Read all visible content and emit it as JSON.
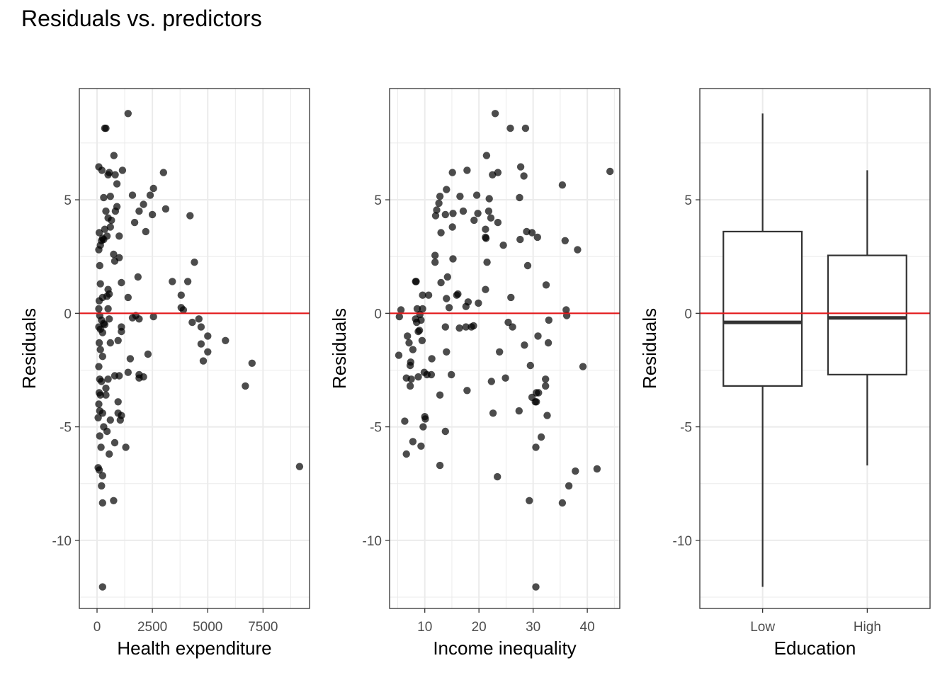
{
  "title": "Residuals vs. predictors",
  "colors": {
    "points": "#000000",
    "reference_line": "#e31a1c",
    "grid": "#ebebeb",
    "panel_border": "#333333",
    "box": "#333333"
  },
  "chart_data": [
    {
      "type": "scatter",
      "xlabel": "Health expenditure",
      "ylabel": "Residuals",
      "xlim": [
        -800,
        9600
      ],
      "ylim": [
        -13,
        9.9
      ],
      "xticks": [
        0,
        2500,
        5000,
        7500
      ],
      "xtick_labels": [
        "0",
        "2500",
        "5000",
        "7500"
      ],
      "yticks": [
        -10,
        -5,
        0,
        5
      ],
      "ytick_labels": [
        "-10",
        "-5",
        "0",
        "5"
      ],
      "reference_line_y": 0,
      "grid": true,
      "points": [
        [
          80,
          6.45
        ],
        [
          220,
          6.3
        ],
        [
          350,
          8.15
        ],
        [
          400,
          8.15
        ],
        [
          1400,
          8.8
        ],
        [
          500,
          6.1
        ],
        [
          550,
          6.2
        ],
        [
          760,
          6.95
        ],
        [
          820,
          6.1
        ],
        [
          1150,
          6.3
        ],
        [
          300,
          5.1
        ],
        [
          600,
          5.15
        ],
        [
          900,
          5.7
        ],
        [
          400,
          4.5
        ],
        [
          500,
          4.2
        ],
        [
          650,
          4.1
        ],
        [
          830,
          4.5
        ],
        [
          900,
          4.7
        ],
        [
          1600,
          5.2
        ],
        [
          1900,
          4.5
        ],
        [
          2100,
          4.8
        ],
        [
          2400,
          5.2
        ],
        [
          2550,
          5.5
        ],
        [
          3000,
          6.2
        ],
        [
          3100,
          4.6
        ],
        [
          2500,
          4.35
        ],
        [
          1700,
          4
        ],
        [
          4200,
          4.3
        ],
        [
          100,
          3.55
        ],
        [
          200,
          3.2
        ],
        [
          250,
          3.3
        ],
        [
          350,
          3.7
        ],
        [
          450,
          3.4
        ],
        [
          600,
          3.8
        ],
        [
          1000,
          3.4
        ],
        [
          2200,
          3.6
        ],
        [
          80,
          2.8
        ],
        [
          150,
          3
        ],
        [
          300,
          3.25
        ],
        [
          120,
          2.1
        ],
        [
          750,
          2.6
        ],
        [
          800,
          2.3
        ],
        [
          1000,
          2.45
        ],
        [
          150,
          1.3
        ],
        [
          500,
          1.05
        ],
        [
          1100,
          1.35
        ],
        [
          1850,
          1.6
        ],
        [
          3400,
          1.4
        ],
        [
          4100,
          1.4
        ],
        [
          4400,
          2.25
        ],
        [
          100,
          0.55
        ],
        [
          250,
          0.7
        ],
        [
          450,
          0.75
        ],
        [
          550,
          0.85
        ],
        [
          500,
          0.2
        ],
        [
          1400,
          0.7
        ],
        [
          3800,
          0.8
        ],
        [
          3800,
          0.25
        ],
        [
          3900,
          0.15
        ],
        [
          80,
          0.2
        ],
        [
          120,
          -0.1
        ],
        [
          200,
          -0.3
        ],
        [
          300,
          -0.45
        ],
        [
          350,
          -0.5
        ],
        [
          80,
          -0.6
        ],
        [
          150,
          -0.7
        ],
        [
          250,
          -0.85
        ],
        [
          550,
          -0.25
        ],
        [
          1100,
          -0.6
        ],
        [
          1100,
          -0.8
        ],
        [
          1600,
          -0.2
        ],
        [
          1750,
          -0.1
        ],
        [
          1900,
          -0.25
        ],
        [
          2550,
          -0.15
        ],
        [
          4600,
          -0.25
        ],
        [
          4300,
          -0.4
        ],
        [
          4700,
          -0.6
        ],
        [
          5000,
          -1
        ],
        [
          4700,
          -1.35
        ],
        [
          5000,
          -1.7
        ],
        [
          5800,
          -1.2
        ],
        [
          4800,
          -2.1
        ],
        [
          7000,
          -2.2
        ],
        [
          6700,
          -3.2
        ],
        [
          100,
          -1.3
        ],
        [
          150,
          -1.6
        ],
        [
          250,
          -1.9
        ],
        [
          600,
          -1.3
        ],
        [
          950,
          -1.2
        ],
        [
          1500,
          -2
        ],
        [
          2300,
          -1.8
        ],
        [
          1400,
          -2.6
        ],
        [
          1900,
          -2.7
        ],
        [
          1900,
          -2.85
        ],
        [
          2100,
          -2.8
        ],
        [
          80,
          -2.35
        ],
        [
          120,
          -2.9
        ],
        [
          200,
          -3
        ],
        [
          400,
          -3.3
        ],
        [
          500,
          -2.9
        ],
        [
          800,
          -2.75
        ],
        [
          1000,
          -2.75
        ],
        [
          100,
          -3.5
        ],
        [
          150,
          -3.6
        ],
        [
          400,
          -3.6
        ],
        [
          950,
          -3.9
        ],
        [
          80,
          -4
        ],
        [
          120,
          -4.3
        ],
        [
          250,
          -4.4
        ],
        [
          950,
          -4.4
        ],
        [
          1100,
          -4.5
        ],
        [
          1050,
          -4.7
        ],
        [
          50,
          -4.6
        ],
        [
          600,
          -4.7
        ],
        [
          300,
          -5
        ],
        [
          450,
          -5.2
        ],
        [
          800,
          -5.7
        ],
        [
          1300,
          -5.9
        ],
        [
          120,
          -5.4
        ],
        [
          180,
          -5.9
        ],
        [
          550,
          -6.2
        ],
        [
          50,
          -6.8
        ],
        [
          100,
          -6.9
        ],
        [
          250,
          -7.15
        ],
        [
          200,
          -7.6
        ],
        [
          750,
          -8.25
        ],
        [
          250,
          -8.35
        ],
        [
          9150,
          -6.75
        ],
        [
          250,
          -12.05
        ]
      ]
    },
    {
      "type": "scatter",
      "xlabel": "Income inequality",
      "ylabel": "Residuals",
      "xlim": [
        3.5,
        46
      ],
      "ylim": [
        -13,
        9.9
      ],
      "xticks": [
        10,
        20,
        30,
        40
      ],
      "xtick_labels": [
        "10",
        "20",
        "30",
        "40"
      ],
      "yticks": [
        -10,
        -5,
        0,
        5
      ],
      "ytick_labels": [
        "-10",
        "-5",
        "0",
        "5"
      ],
      "reference_line_y": 0,
      "grid": true,
      "points": [
        [
          23,
          8.8
        ],
        [
          25.8,
          8.15
        ],
        [
          28.6,
          8.15
        ],
        [
          21.4,
          6.95
        ],
        [
          27.7,
          6.45
        ],
        [
          28.3,
          6.05
        ],
        [
          22.5,
          6.1
        ],
        [
          23.5,
          6.2
        ],
        [
          17.8,
          6.3
        ],
        [
          15.1,
          6.2
        ],
        [
          44.2,
          6.25
        ],
        [
          35.4,
          5.65
        ],
        [
          12.8,
          5.15
        ],
        [
          14,
          5.45
        ],
        [
          16.5,
          5.15
        ],
        [
          19.6,
          5.2
        ],
        [
          21.9,
          5.05
        ],
        [
          27.5,
          5.1
        ],
        [
          12.6,
          4.85
        ],
        [
          12.2,
          4.55
        ],
        [
          13.8,
          4.35
        ],
        [
          15.2,
          4.4
        ],
        [
          17.1,
          4.5
        ],
        [
          19.8,
          4.4
        ],
        [
          21.8,
          4.5
        ],
        [
          22.2,
          4.2
        ],
        [
          23.5,
          4
        ],
        [
          12,
          4.3
        ],
        [
          19.1,
          4.1
        ],
        [
          15.1,
          3.8
        ],
        [
          21.2,
          3.7
        ],
        [
          13,
          3.55
        ],
        [
          21.2,
          3.35
        ],
        [
          21.3,
          3.3
        ],
        [
          24.5,
          3
        ],
        [
          28.8,
          3.6
        ],
        [
          29.8,
          3.55
        ],
        [
          30.8,
          3.35
        ],
        [
          27.6,
          3.25
        ],
        [
          35.9,
          3.2
        ],
        [
          38.2,
          2.8
        ],
        [
          11.9,
          2.55
        ],
        [
          15.2,
          2.4
        ],
        [
          11.9,
          2.25
        ],
        [
          21.5,
          2.25
        ],
        [
          29,
          2.1
        ],
        [
          8.3,
          1.4
        ],
        [
          8.4,
          1.4
        ],
        [
          14.2,
          1.6
        ],
        [
          13,
          1.35
        ],
        [
          21.2,
          1.05
        ],
        [
          32.4,
          1.25
        ],
        [
          9.6,
          0.8
        ],
        [
          10.7,
          0.8
        ],
        [
          15.9,
          0.8
        ],
        [
          16.1,
          0.85
        ],
        [
          18,
          0.5
        ],
        [
          19.9,
          0.45
        ],
        [
          25.9,
          0.7
        ],
        [
          14,
          0.65
        ],
        [
          14.5,
          0.25
        ],
        [
          17.6,
          0.3
        ],
        [
          36.1,
          0.15
        ],
        [
          36.2,
          -0.1
        ],
        [
          5.6,
          0.15
        ],
        [
          8.6,
          0.2
        ],
        [
          9.6,
          0.2
        ],
        [
          9.1,
          -0.05
        ],
        [
          5.3,
          -0.15
        ],
        [
          8.3,
          -0.25
        ],
        [
          9.3,
          -0.3
        ],
        [
          8.5,
          -0.4
        ],
        [
          13.8,
          -0.6
        ],
        [
          16.4,
          -0.65
        ],
        [
          17.6,
          -0.6
        ],
        [
          18.6,
          -0.6
        ],
        [
          19,
          -0.55
        ],
        [
          25.4,
          -0.4
        ],
        [
          26.2,
          -0.6
        ],
        [
          32.9,
          -0.3
        ],
        [
          8.8,
          -0.8
        ],
        [
          9,
          -0.75
        ],
        [
          6.8,
          -1
        ],
        [
          9.5,
          -1.2
        ],
        [
          7.1,
          -1.3
        ],
        [
          7.8,
          -1.6
        ],
        [
          14,
          -1.7
        ],
        [
          23.8,
          -1.7
        ],
        [
          28.4,
          -1.4
        ],
        [
          30.9,
          -1
        ],
        [
          32.8,
          -1.3
        ],
        [
          5.2,
          -1.85
        ],
        [
          7.4,
          -2.15
        ],
        [
          7.3,
          -2.3
        ],
        [
          11.3,
          -2
        ],
        [
          9.9,
          -2.6
        ],
        [
          10.4,
          -2.7
        ],
        [
          11.2,
          -2.7
        ],
        [
          14.9,
          -2.7
        ],
        [
          6.6,
          -2.85
        ],
        [
          7.5,
          -2.9
        ],
        [
          8.8,
          -2.8
        ],
        [
          22.3,
          -3
        ],
        [
          24.9,
          -2.85
        ],
        [
          29.5,
          -2.3
        ],
        [
          32.3,
          -2.9
        ],
        [
          32.3,
          -3.2
        ],
        [
          39.2,
          -2.35
        ],
        [
          7.3,
          -3.2
        ],
        [
          12.8,
          -3.6
        ],
        [
          17.8,
          -3.4
        ],
        [
          29.8,
          -3.7
        ],
        [
          30.4,
          -3.9
        ],
        [
          30.6,
          -3.9
        ],
        [
          30.6,
          -3.5
        ],
        [
          31,
          -3.5
        ],
        [
          27.4,
          -4.3
        ],
        [
          22.6,
          -4.4
        ],
        [
          32.6,
          -4.5
        ],
        [
          10,
          -4.55
        ],
        [
          10.1,
          -4.65
        ],
        [
          6.3,
          -4.75
        ],
        [
          9.7,
          -5
        ],
        [
          13.8,
          -5.2
        ],
        [
          31.5,
          -5.45
        ],
        [
          7.8,
          -5.65
        ],
        [
          9.3,
          -5.85
        ],
        [
          30.5,
          -5.9
        ],
        [
          6.6,
          -6.2
        ],
        [
          12.8,
          -6.7
        ],
        [
          41.8,
          -6.85
        ],
        [
          37.8,
          -6.95
        ],
        [
          23.4,
          -7.2
        ],
        [
          36.6,
          -7.6
        ],
        [
          29.3,
          -8.25
        ],
        [
          35.4,
          -8.35
        ],
        [
          30.5,
          -12.05
        ]
      ]
    },
    {
      "type": "box",
      "xlabel": "Education",
      "ylabel": "Residuals",
      "categories": [
        "Low",
        "High"
      ],
      "ylim": [
        -13,
        9.9
      ],
      "yticks": [
        -10,
        -5,
        0,
        5
      ],
      "ytick_labels": [
        "-10",
        "-5",
        "0",
        "5"
      ],
      "reference_line_y": 0,
      "grid": true,
      "boxes": [
        {
          "name": "Low",
          "min": -12.05,
          "q1": -3.2,
          "median": -0.4,
          "q3": 3.6,
          "max": 8.8
        },
        {
          "name": "High",
          "min": -6.7,
          "q1": -2.7,
          "median": -0.2,
          "q3": 2.55,
          "max": 6.3
        }
      ]
    }
  ]
}
